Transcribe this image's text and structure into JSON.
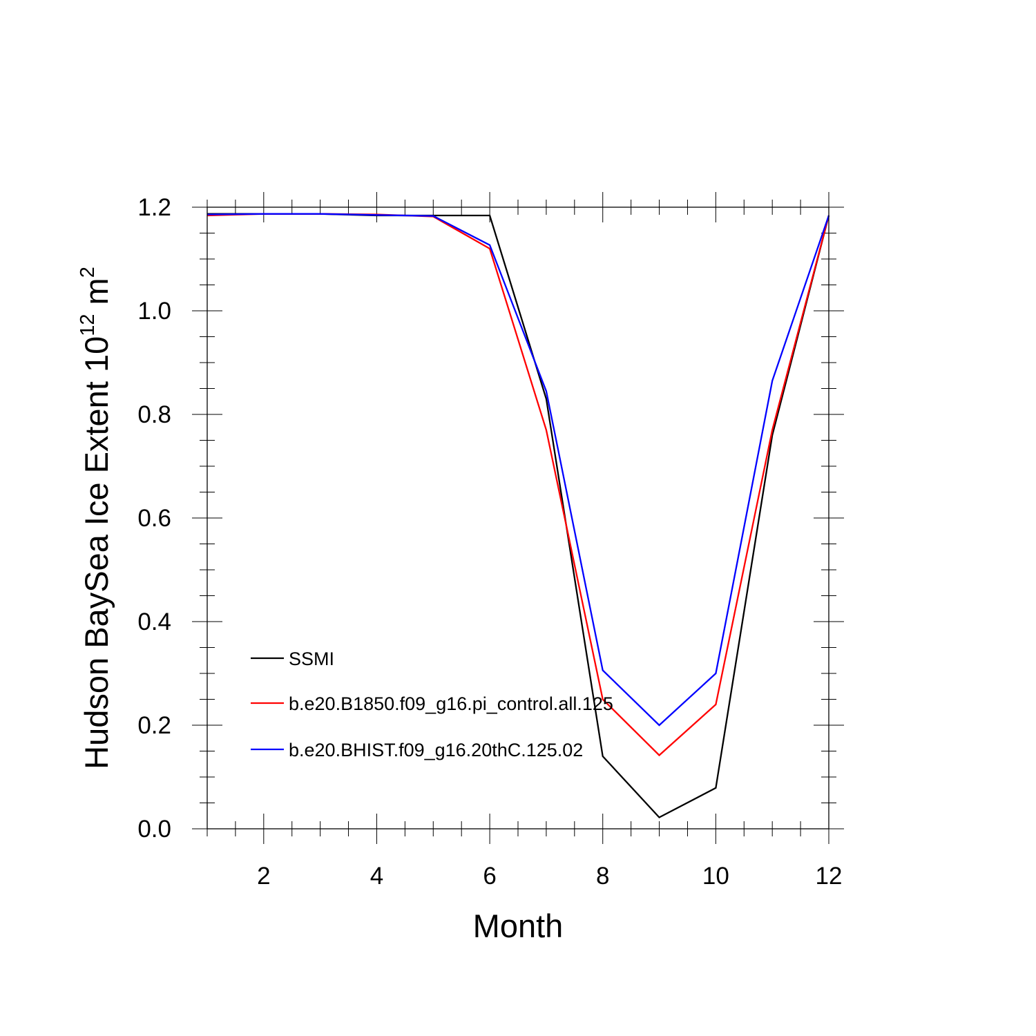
{
  "chart_data": {
    "type": "line",
    "title": "",
    "xlabel": "Month",
    "ylabel": {
      "text": "Hudson BaySea Ice Extent 10",
      "superscript": "12",
      "unit": " m",
      "unit_superscript": "2"
    },
    "xlim": [
      1,
      12
    ],
    "ylim": [
      0,
      1.2
    ],
    "x_ticks": [
      2,
      4,
      6,
      8,
      10,
      12
    ],
    "x_tick_labels": [
      "2",
      "4",
      "6",
      "8",
      "10",
      "12"
    ],
    "y_ticks": [
      0,
      0.2,
      0.4,
      0.6,
      0.8,
      1.0,
      1.2
    ],
    "y_tick_labels": [
      "0.0",
      "0.2",
      "0.4",
      "0.6",
      "0.8",
      "1.0",
      "1.2"
    ],
    "grid": false,
    "legend_placement": "bottom-left",
    "x": [
      1,
      2,
      3,
      4,
      5,
      6,
      7,
      8,
      9,
      10,
      11,
      12
    ],
    "series": [
      {
        "name": "SSMI",
        "color": "#000000",
        "values": [
          1.187,
          1.187,
          1.187,
          1.184,
          1.184,
          1.184,
          0.83,
          0.14,
          0.022,
          0.079,
          0.76,
          1.184
        ]
      },
      {
        "name": "b.e20.B1850.f09_g16.pi_control.all.125",
        "color": "#ff0000",
        "values": [
          1.184,
          1.187,
          1.187,
          1.186,
          1.182,
          1.12,
          0.77,
          0.25,
          0.142,
          0.24,
          0.77,
          1.184
        ]
      },
      {
        "name": "b.e20.BHIST.f09_g16.20thC.125.02",
        "color": "#0000ff",
        "values": [
          1.186,
          1.187,
          1.187,
          1.185,
          1.183,
          1.127,
          0.845,
          0.306,
          0.2,
          0.3,
          0.865,
          1.184
        ]
      }
    ]
  }
}
